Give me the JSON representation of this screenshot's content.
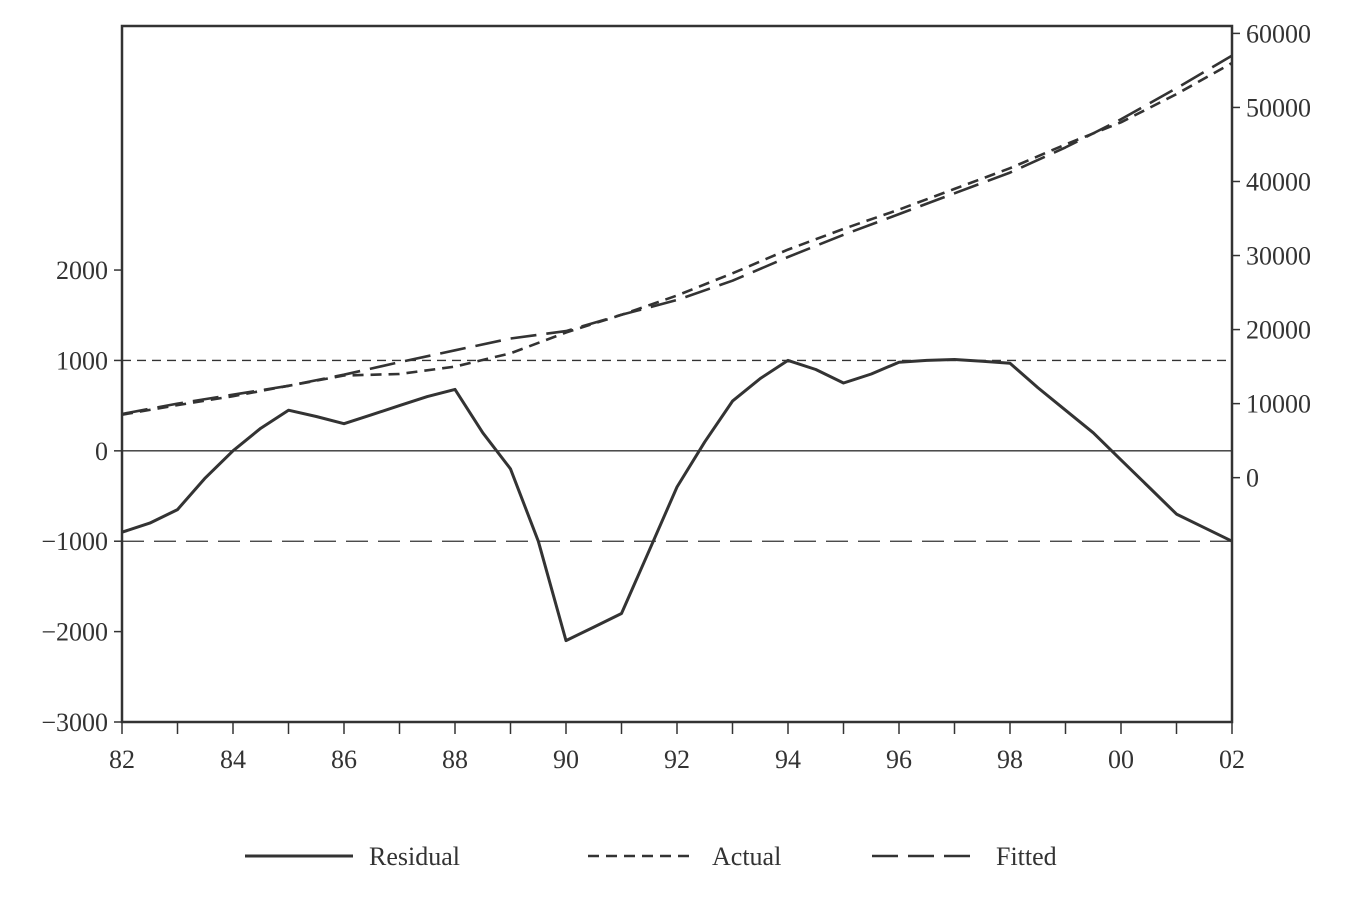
{
  "chart_data": {
    "type": "line",
    "title": "",
    "xlabel": "",
    "ylabel": "",
    "x_tick_labels": [
      "82",
      "84",
      "86",
      "88",
      "90",
      "92",
      "94",
      "96",
      "98",
      "00",
      "02"
    ],
    "xlim": [
      1982,
      2002
    ],
    "left_axis": {
      "ticks": [
        -3000,
        -2000,
        -1000,
        0,
        1000,
        2000
      ],
      "ylim": [
        -3000,
        4700
      ]
    },
    "right_axis": {
      "ticks": [
        0,
        10000,
        20000,
        30000,
        40000,
        50000,
        60000
      ],
      "ylim": [
        -33000,
        61000
      ]
    },
    "reference_lines": [
      0,
      1000,
      -1000
    ],
    "legend_position": "bottom-center",
    "series": [
      {
        "name": "Residual",
        "axis": "left",
        "style": "solid",
        "x": [
          1982,
          1982.5,
          1983,
          1983.5,
          1984,
          1984.5,
          1985,
          1985.5,
          1986,
          1986.5,
          1987,
          1987.5,
          1988,
          1988.5,
          1989,
          1989.5,
          1990,
          1990.5,
          1991,
          1991.5,
          1992,
          1992.5,
          1993,
          1993.5,
          1994,
          1994.5,
          1995,
          1995.5,
          1996,
          1996.5,
          1997,
          1997.5,
          1998,
          1998.5,
          1999,
          1999.5,
          2000,
          2000.5,
          2001,
          2001.5,
          2002
        ],
        "values": [
          -900,
          -800,
          -650,
          -300,
          0,
          250,
          450,
          380,
          300,
          400,
          500,
          600,
          680,
          200,
          -200,
          -1000,
          -2100,
          -1950,
          -1800,
          -1100,
          -400,
          100,
          550,
          800,
          1000,
          900,
          750,
          850,
          980,
          1000,
          1010,
          990,
          970,
          700,
          450,
          200,
          -100,
          -400,
          -700,
          -850,
          -1000
        ]
      },
      {
        "name": "Actual",
        "axis": "right",
        "style": "short-dash",
        "x": [
          1982,
          1983,
          1984,
          1985,
          1986,
          1987,
          1988,
          1989,
          1990,
          1991,
          1992,
          1993,
          1994,
          1995,
          1996,
          1997,
          1998,
          1999,
          2000,
          2001,
          2002
        ],
        "values": [
          8500,
          9800,
          11000,
          12400,
          13800,
          14000,
          15000,
          16800,
          19600,
          22000,
          24600,
          27600,
          30800,
          33600,
          36200,
          39000,
          41800,
          45000,
          48000,
          51800,
          56000
        ]
      },
      {
        "name": "Fitted",
        "axis": "right",
        "style": "long-dash",
        "x": [
          1982,
          1983,
          1984,
          1985,
          1986,
          1987,
          1988,
          1989,
          1990,
          1991,
          1992,
          1993,
          1994,
          1995,
          1996,
          1997,
          1998,
          1999,
          2000,
          2001,
          2002
        ],
        "values": [
          8600,
          10000,
          11200,
          12400,
          13900,
          15600,
          17200,
          18800,
          19800,
          22000,
          24000,
          26600,
          29800,
          32800,
          35600,
          38400,
          41200,
          44600,
          48400,
          52600,
          57000
        ]
      }
    ]
  }
}
